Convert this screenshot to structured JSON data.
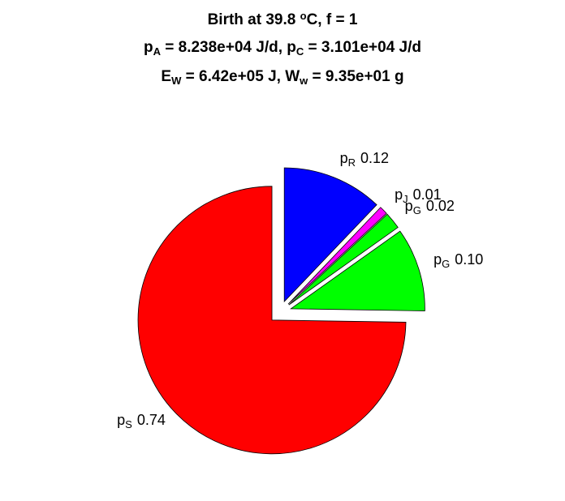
{
  "chart_data": {
    "type": "pie",
    "title": [
      [
        {
          "text": "Birth at 39.8 ",
          "baseline": "normal"
        },
        {
          "text": "o",
          "baseline": "super"
        },
        {
          "text": "C, f = 1",
          "baseline": "normal"
        }
      ],
      [
        {
          "text": "p",
          "baseline": "normal"
        },
        {
          "text": "A",
          "baseline": "sub"
        },
        {
          "text": " = 8.238e+04 J/d, p",
          "baseline": "normal"
        },
        {
          "text": "C",
          "baseline": "sub"
        },
        {
          "text": " = 3.101e+04 J/d",
          "baseline": "normal"
        }
      ],
      [
        {
          "text": "E",
          "baseline": "normal"
        },
        {
          "text": "W",
          "baseline": "sub"
        },
        {
          "text": " = 6.42e+05 J, W",
          "baseline": "normal"
        },
        {
          "text": "w",
          "baseline": "sub"
        },
        {
          "text": " = 9.35e+01 g",
          "baseline": "normal"
        }
      ]
    ],
    "categories": [
      "p",
      "p",
      "p",
      "p",
      "p"
    ],
    "subscripts": [
      "R",
      "J",
      "G",
      "G",
      "S"
    ],
    "values": [
      0.12,
      0.01,
      0.02,
      0.1,
      0.74
    ],
    "value_labels": [
      "0.12",
      "0.01",
      "0.02",
      "0.10",
      "0.74"
    ],
    "colors": [
      "#0000ff",
      "#ff00ff",
      "#00ff00",
      "#00ff00",
      "#ff0000"
    ],
    "explode": [
      true,
      true,
      true,
      true,
      true
    ]
  }
}
